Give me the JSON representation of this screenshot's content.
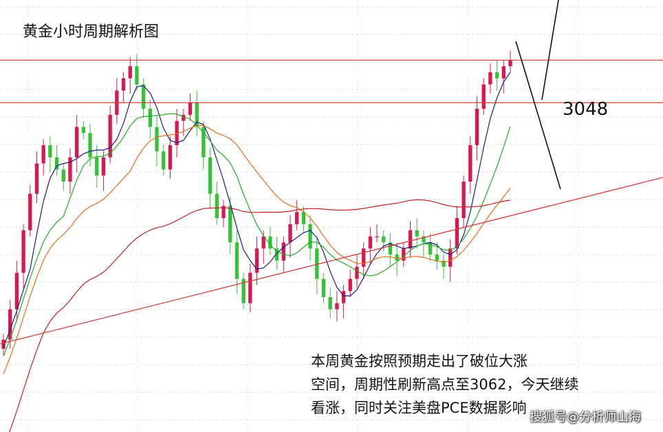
{
  "title": "黄金小时周期解析图",
  "note_lines": [
    "本周黄金按照预期走出了破位大涨",
    "空间，周期性刷新高点至3062，今天继续",
    "看涨，同时关注美盘PCE数据影响"
  ],
  "watermark": "搜狐号@分析师山海",
  "chart_data": {
    "type": "candlestick",
    "title": "黄金小时周期解析图",
    "level_labels": [
      "3048"
    ],
    "horizontal_levels": [
      {
        "price": 3062,
        "color": "#d83a3a"
      },
      {
        "price": 3048,
        "color": "#d83a3a",
        "label": "3048"
      }
    ],
    "trendline": {
      "color": "#d83a3a",
      "description": "rising support line"
    },
    "projection": {
      "color": "#111111",
      "description": "V-shaped pullback then up"
    },
    "y_range_approx": [
      2955,
      3075
    ],
    "closes_approx": [
      2970,
      2980,
      2992,
      3006,
      3018,
      3028,
      3034,
      3030,
      3026,
      3022,
      3030,
      3040,
      3038,
      3030,
      3024,
      3030,
      3044,
      3052,
      3056,
      3060,
      3054,
      3046,
      3040,
      3032,
      3026,
      3034,
      3042,
      3044,
      3048,
      3040,
      3030,
      3018,
      3010,
      3014,
      3002,
      2990,
      2982,
      2992,
      3000,
      3004,
      3000,
      2996,
      3002,
      3008,
      3012,
      3008,
      3000,
      2990,
      2984,
      2980,
      2982,
      2986,
      2990,
      2994,
      3000,
      3004,
      3004,
      3002,
      2998,
      2996,
      3000,
      3006,
      3004,
      3002,
      2998,
      2996,
      2994,
      3000,
      3010,
      3022,
      3034,
      3046,
      3054,
      3058,
      3056,
      3060,
      3062
    ],
    "candle_colors": {
      "up": "#d8194f",
      "down": "#36c236"
    },
    "moving_averages": [
      {
        "color": "#1a1a8c",
        "period": 5
      },
      {
        "color": "#22aa22",
        "period": 10
      },
      {
        "color": "#e86a1a",
        "period": 20
      },
      {
        "color": "#c22020",
        "period": 60
      }
    ],
    "grid": true,
    "legend": "none"
  }
}
